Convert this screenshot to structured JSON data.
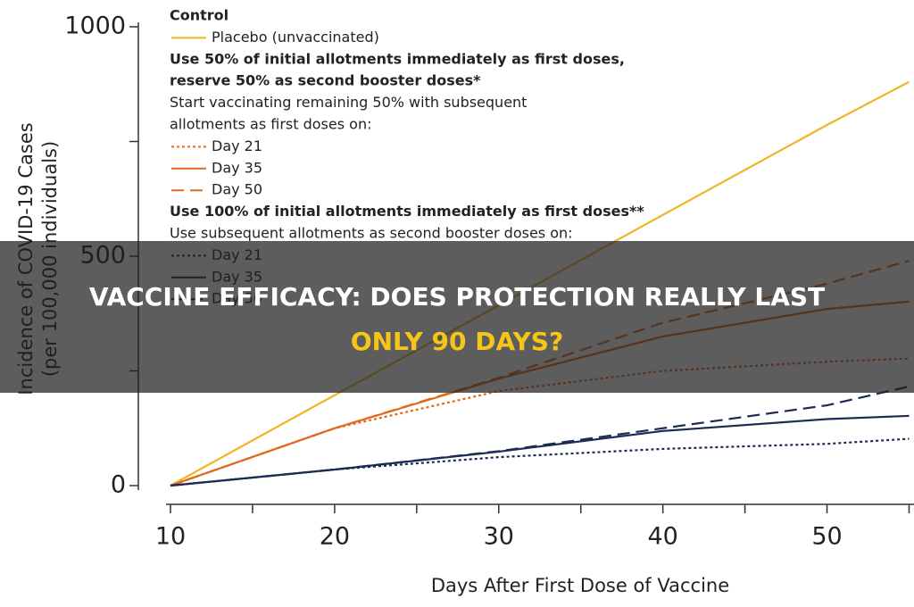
{
  "chart_data": {
    "type": "line",
    "x_label": "Days After First Dose of Vaccine",
    "y_label": [
      "Incidence of COVID-19 Cases",
      "(per 100,000 individuals)"
    ],
    "xlim": [
      10,
      55.3
    ],
    "ylim": [
      0,
      1000
    ],
    "xticks": [
      10,
      20,
      30,
      40,
      50
    ],
    "xminorticks": [
      15,
      25,
      35,
      45,
      55
    ],
    "yticks": [
      0,
      500,
      1000
    ],
    "yminorticks": [
      250,
      750
    ],
    "x": [
      10,
      20,
      30,
      40,
      50,
      55
    ],
    "legend_groups": [
      {
        "heading": [
          "Control"
        ],
        "note": []
      },
      {
        "heading": [
          "Use 50% of initial allotments immediately as first doses,",
          "reserve 50% as second booster doses*"
        ],
        "note": [
          "Start vaccinating remaining 50% with subsequent",
          "allotments as first doses on:"
        ]
      },
      {
        "heading": [
          "Use 100% of initial allotments immediately as first doses**"
        ],
        "note": [
          "Use subsequent allotments as second booster doses on:"
        ]
      }
    ],
    "series": [
      {
        "name": "Placebo (unvaccinated)",
        "color": "#f0b429",
        "dash": "solid",
        "values": [
          0,
          197,
          393,
          590,
          786,
          880
        ]
      },
      {
        "name": "Day 21",
        "color": "#e06a1c",
        "dash": "dotted",
        "values": [
          0,
          125,
          206,
          250,
          270,
          277
        ]
      },
      {
        "name": "Day 35",
        "color": "#e06a1c",
        "dash": "solid",
        "values": [
          0,
          125,
          233,
          325,
          385,
          401
        ]
      },
      {
        "name": "Day 50",
        "color": "#e06a1c",
        "dash": "dashed",
        "values": [
          0,
          125,
          235,
          355,
          440,
          490
        ]
      },
      {
        "name": "Day 21",
        "color": "#1b2b52",
        "dash": "dotted",
        "values": [
          0,
          35,
          62,
          80,
          91,
          102
        ]
      },
      {
        "name": "Day 35",
        "color": "#1b2b52",
        "dash": "solid",
        "values": [
          0,
          35,
          74,
          119,
          145,
          152
        ]
      },
      {
        "name": "Day 50",
        "color": "#1b2b52",
        "dash": "dashed",
        "values": [
          0,
          35,
          75,
          125,
          175,
          216
        ]
      }
    ]
  },
  "banner": {
    "lines": [
      "VACCINE EFFICACY: DOES PROTECTION REALLY LAST",
      "ONLY 90 DAYS?"
    ],
    "colors": [
      "#ffffff",
      "#f5c518"
    ]
  }
}
